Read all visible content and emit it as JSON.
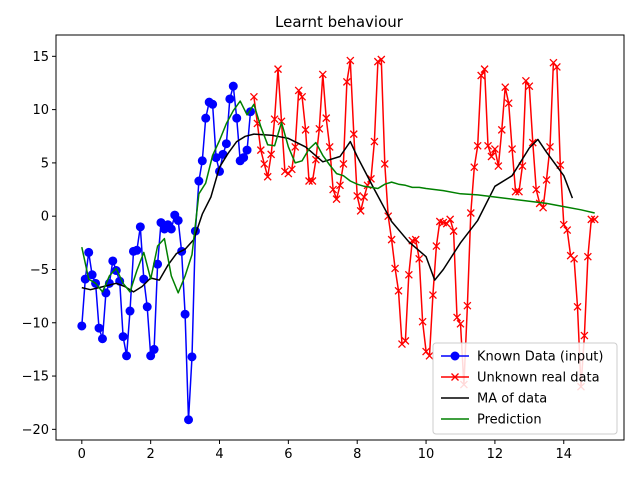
{
  "chart_data": {
    "type": "line",
    "title": "Learnt behaviour",
    "xlabel": "",
    "ylabel": "",
    "xlim": [
      -0.75,
      15.75
    ],
    "ylim": [
      -21,
      17
    ],
    "xticks": [
      0,
      2,
      4,
      6,
      8,
      10,
      12,
      14
    ],
    "yticks": [
      -20,
      -15,
      -10,
      -5,
      0,
      5,
      10,
      15
    ],
    "grid": false,
    "legend_position": "lower-right",
    "series": [
      {
        "name": "Known Data (input)",
        "color": "#0000ff",
        "marker": "circle",
        "x": [
          0.0,
          0.1,
          0.2,
          0.3,
          0.4,
          0.5,
          0.6,
          0.7,
          0.8,
          0.9,
          1.0,
          1.1,
          1.2,
          1.3,
          1.4,
          1.5,
          1.6,
          1.7,
          1.8,
          1.9,
          2.0,
          2.1,
          2.2,
          2.3,
          2.4,
          2.5,
          2.6,
          2.7,
          2.8,
          2.9,
          3.0,
          3.1,
          3.2,
          3.3,
          3.4,
          3.5,
          3.6,
          3.7,
          3.8,
          3.9,
          4.0,
          4.1,
          4.2,
          4.3,
          4.4,
          4.5,
          4.6,
          4.7,
          4.8,
          4.9
        ],
        "y": [
          -10.3,
          -5.9,
          -3.4,
          -5.5,
          -6.3,
          -10.5,
          -11.5,
          -7.2,
          -6.3,
          -4.2,
          -5.1,
          -6.1,
          -11.3,
          -13.1,
          -8.9,
          -3.3,
          -3.2,
          -1.0,
          -5.9,
          -8.5,
          -13.1,
          -12.5,
          -4.5,
          -0.6,
          -1.2,
          -0.8,
          -1.2,
          0.1,
          -0.4,
          -3.3,
          -9.2,
          -19.1,
          -13.2,
          -1.4,
          3.3,
          5.2,
          9.2,
          10.7,
          10.5,
          5.5,
          4.2,
          5.8,
          6.8,
          11.0,
          12.2,
          9.2,
          5.2,
          5.5,
          6.2,
          9.8
        ]
      },
      {
        "name": "Unknown real data",
        "color": "#ff0000",
        "marker": "x",
        "x": [
          5.0,
          5.1,
          5.2,
          5.3,
          5.4,
          5.5,
          5.6,
          5.7,
          5.8,
          5.9,
          6.0,
          6.1,
          6.2,
          6.3,
          6.4,
          6.5,
          6.6,
          6.7,
          6.8,
          6.9,
          7.0,
          7.1,
          7.2,
          7.3,
          7.4,
          7.5,
          7.6,
          7.7,
          7.8,
          7.9,
          8.0,
          8.1,
          8.2,
          8.3,
          8.4,
          8.5,
          8.6,
          8.7,
          8.8,
          8.9,
          9.0,
          9.1,
          9.2,
          9.3,
          9.4,
          9.5,
          9.6,
          9.7,
          9.8,
          9.9,
          10.0,
          10.1,
          10.2,
          10.3,
          10.4,
          10.5,
          10.6,
          10.7,
          10.8,
          10.9,
          11.0,
          11.1,
          11.2,
          11.3,
          11.4,
          11.5,
          11.6,
          11.7,
          11.8,
          11.9,
          12.0,
          12.1,
          12.2,
          12.3,
          12.4,
          12.5,
          12.6,
          12.7,
          12.8,
          12.9,
          13.0,
          13.1,
          13.2,
          13.3,
          13.4,
          13.5,
          13.6,
          13.7,
          13.8,
          13.9,
          14.0,
          14.1,
          14.2,
          14.3,
          14.4,
          14.5,
          14.6,
          14.7,
          14.8,
          14.9
        ],
        "y": [
          11.2,
          8.7,
          6.2,
          4.9,
          3.7,
          5.8,
          9.1,
          13.8,
          8.9,
          4.2,
          4.0,
          4.4,
          6.5,
          11.8,
          11.2,
          8.1,
          3.3,
          3.3,
          5.3,
          8.2,
          13.3,
          9.2,
          6.5,
          2.5,
          1.6,
          2.9,
          4.9,
          12.6,
          14.6,
          7.7,
          1.9,
          0.5,
          1.8,
          2.9,
          3.5,
          7.0,
          14.5,
          14.7,
          4.9,
          0.0,
          -2.2,
          -4.9,
          -7.0,
          -12.0,
          -11.7,
          -5.5,
          -2.3,
          -2.2,
          -4.0,
          -9.9,
          -12.7,
          -13.1,
          -7.4,
          -2.8,
          -0.5,
          -0.6,
          -0.7,
          -0.3,
          -1.4,
          -9.5,
          -10.1,
          -15.8,
          -8.4,
          0.3,
          4.6,
          6.6,
          13.2,
          13.8,
          6.6,
          5.6,
          6.3,
          4.7,
          8.1,
          12.1,
          10.6,
          6.3,
          2.3,
          2.3,
          4.7,
          12.7,
          12.2,
          6.9,
          2.5,
          1.2,
          0.8,
          3.4,
          6.5,
          14.4,
          14.0,
          4.8,
          -0.8,
          -1.3,
          -3.7,
          -4.0,
          -8.5,
          -16.0,
          -11.2,
          -3.8,
          -0.3,
          -0.3
        ]
      },
      {
        "name": "MA of data",
        "color": "#000000",
        "marker": "none",
        "x": [
          0.0,
          0.25,
          0.5,
          0.75,
          1.0,
          1.25,
          1.5,
          1.75,
          2.0,
          2.25,
          2.5,
          2.75,
          3.0,
          3.25,
          3.5,
          3.75,
          4.0,
          4.25,
          4.5,
          4.75,
          5.0,
          5.5,
          6.0,
          6.5,
          7.0,
          7.5,
          7.8,
          8.0,
          8.5,
          9.0,
          9.5,
          10.0,
          10.25,
          10.5,
          11.0,
          11.5,
          12.0,
          12.5,
          13.0,
          13.25,
          13.5,
          14.0,
          14.25
        ],
        "y": [
          -6.7,
          -6.9,
          -6.7,
          -6.5,
          -6.3,
          -6.6,
          -7.1,
          -6.6,
          -5.8,
          -6.0,
          -4.6,
          -3.5,
          -3.1,
          -2.2,
          0.2,
          1.8,
          4.6,
          5.9,
          7.0,
          7.5,
          7.7,
          7.6,
          7.3,
          6.5,
          5.1,
          5.6,
          7.0,
          5.6,
          2.5,
          -0.5,
          -2.4,
          -3.8,
          -6.0,
          -5.0,
          -2.5,
          -0.4,
          2.8,
          3.8,
          6.4,
          7.2,
          6.0,
          3.8,
          1.7
        ]
      },
      {
        "name": "Prediction",
        "color": "#008000",
        "marker": "none",
        "x": [
          0.0,
          0.2,
          0.4,
          0.6,
          0.8,
          1.0,
          1.2,
          1.4,
          1.6,
          1.8,
          2.0,
          2.2,
          2.4,
          2.6,
          2.8,
          3.0,
          3.2,
          3.4,
          3.6,
          3.8,
          4.0,
          4.2,
          4.4,
          4.6,
          4.8,
          5.0,
          5.2,
          5.4,
          5.6,
          5.8,
          6.0,
          6.2,
          6.4,
          6.6,
          6.8,
          7.0,
          7.2,
          7.4,
          7.6,
          7.8,
          8.0,
          8.2,
          8.4,
          8.6,
          8.8,
          9.0,
          9.2,
          9.4,
          9.6,
          9.8,
          10.0,
          10.5,
          11.0,
          11.5,
          12.0,
          12.5,
          13.0,
          13.5,
          14.0,
          14.5,
          14.9
        ],
        "y": [
          -2.9,
          -5.9,
          -6.3,
          -7.1,
          -5.6,
          -4.9,
          -6.3,
          -7.1,
          -5.1,
          -3.4,
          -5.9,
          -2.8,
          -2.1,
          -5.6,
          -7.2,
          -5.6,
          -3.6,
          2.1,
          3.1,
          5.7,
          7.1,
          8.7,
          9.9,
          10.8,
          9.5,
          10.5,
          8.4,
          6.7,
          6.6,
          8.8,
          6.5,
          5.0,
          5.2,
          6.3,
          6.9,
          5.7,
          4.8,
          4.0,
          3.8,
          3.3,
          3.0,
          2.8,
          2.7,
          2.6,
          3.0,
          3.2,
          3.0,
          2.9,
          2.7,
          2.7,
          2.6,
          2.4,
          2.1,
          2.0,
          1.8,
          1.6,
          1.4,
          1.2,
          0.9,
          0.6,
          0.3
        ]
      }
    ]
  }
}
